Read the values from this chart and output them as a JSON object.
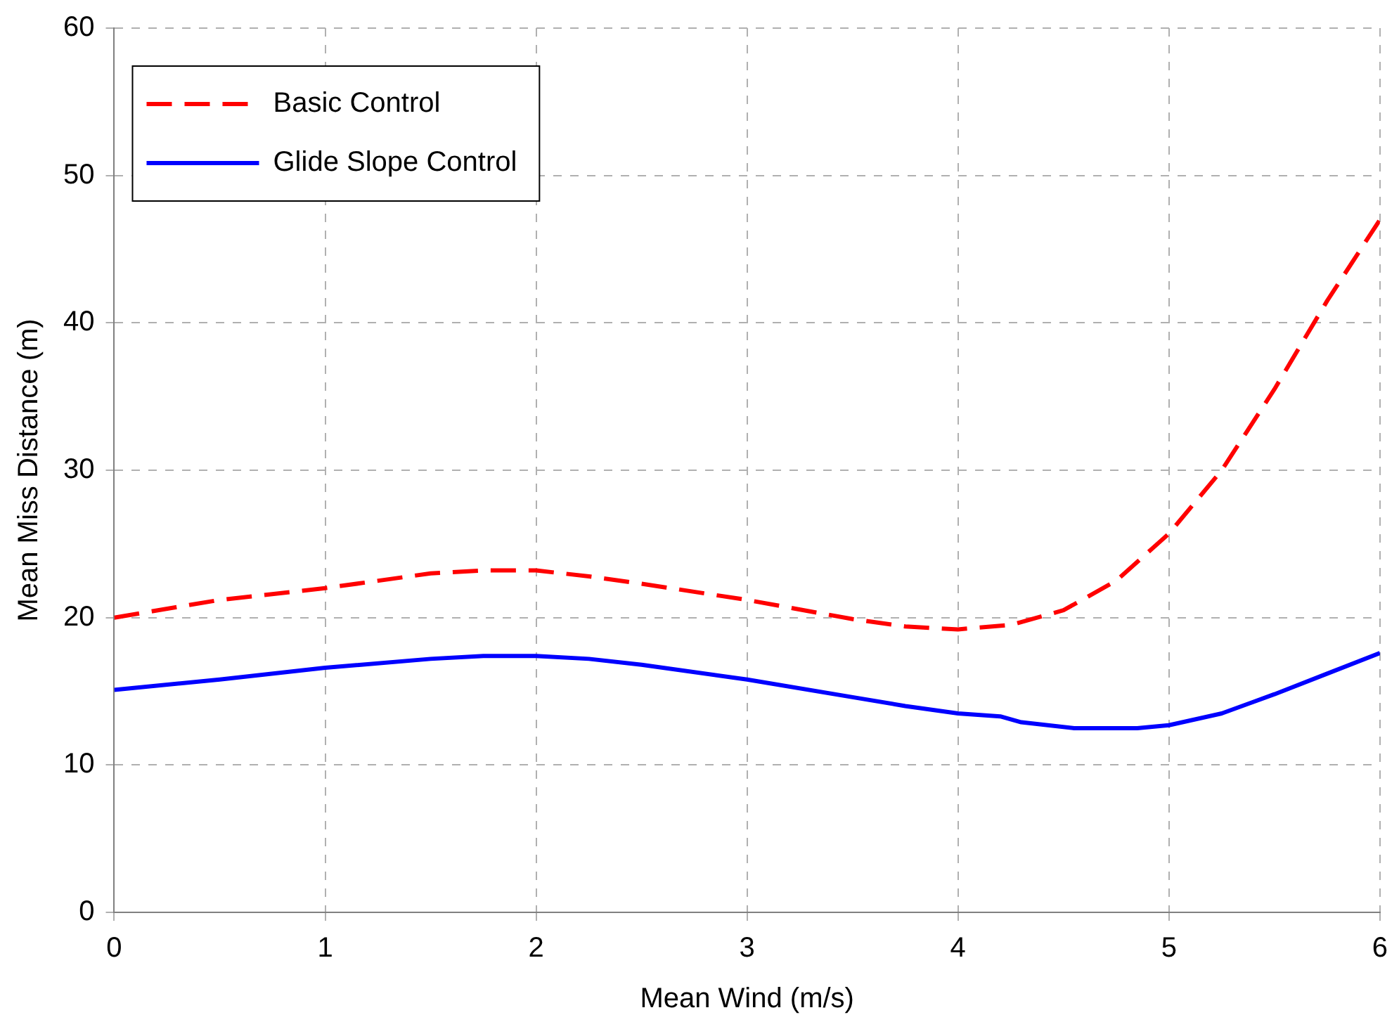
{
  "chart_data": {
    "type": "line",
    "xlabel": "Mean Wind (m/s)",
    "ylabel": "Mean Miss Distance (m)",
    "xlim": [
      0,
      6
    ],
    "xticks": [
      0,
      1,
      2,
      3,
      4,
      5,
      6
    ],
    "ylim": [
      0,
      60
    ],
    "yticks": [
      0,
      10,
      20,
      30,
      40,
      50,
      60
    ],
    "grid": true,
    "legend": "top left",
    "marker": "none",
    "series": [
      {
        "name": "Basic Control",
        "color": "#ff0000",
        "line_style": "dashed",
        "x": [
          0,
          0.5,
          1,
          1.5,
          1.75,
          2,
          2.25,
          2.5,
          3,
          3.5,
          3.75,
          4,
          4.25,
          4.5,
          4.75,
          5,
          5.25,
          5.5,
          5.75,
          6
        ],
        "values": [
          20,
          21.2,
          22,
          23,
          23.2,
          23.2,
          22.8,
          22.3,
          21.2,
          19.9,
          19.4,
          19.2,
          19.5,
          20.5,
          22.5,
          25.7,
          30,
          35.5,
          41.5,
          47
        ]
      },
      {
        "name": "Glide Slope Control",
        "color": "#0000ff",
        "line_style": "solid",
        "x": [
          0,
          0.5,
          1,
          1.5,
          1.75,
          2,
          2.25,
          2.5,
          3,
          3.5,
          3.75,
          4,
          4.2,
          4.3,
          4.55,
          4.85,
          5,
          5.25,
          5.5,
          5.75,
          6
        ],
        "values": [
          15.1,
          15.8,
          16.6,
          17.2,
          17.4,
          17.4,
          17.2,
          16.8,
          15.8,
          14.6,
          14,
          13.5,
          13.3,
          12.9,
          12.5,
          12.5,
          12.7,
          13.5,
          14.8,
          16.2,
          17.6
        ]
      }
    ]
  }
}
